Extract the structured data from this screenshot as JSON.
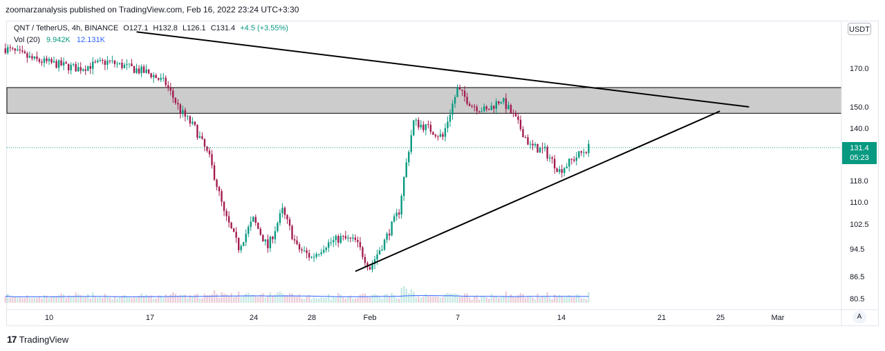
{
  "publisher_line": "zoomarzanalysis published on TradingView.com, Feb 16, 2022 23:24 UTC+3:30",
  "legend": {
    "symbol": "QNT / TetherUS, 4h, BINANCE",
    "open": "O127.1",
    "high": "H132.8",
    "low": "L126.1",
    "close": "C131.4",
    "change": "+4.5 (+3.55%)",
    "volume_label": "Vol (20)",
    "volume_value": "9.942K",
    "volume_ma": "12.131K"
  },
  "currency_button": "USDT",
  "auto_button": "A",
  "last_price": {
    "price": "131.4",
    "countdown": "05:23"
  },
  "branding": "TradingView",
  "colors": {
    "up": "#089981",
    "down": "#a31b4f",
    "volume_ma": "#2962ff",
    "zone": "#cccccc",
    "trendline": "#000000"
  },
  "chart_data": {
    "type": "candlestick",
    "timeframe": "4h",
    "x_ticks": [
      "10",
      "17",
      "24",
      "28",
      "Feb",
      "7",
      "14",
      "21",
      "25",
      "Mar"
    ],
    "y_ticks": [
      "170.0",
      "150.0",
      "140.0",
      "118.0",
      "110.0",
      "102.5",
      "94.5",
      "86.5",
      "80.5"
    ],
    "y_axis_tick_values": [
      170.0,
      150.0,
      140.0,
      118.0,
      110.0,
      102.5,
      94.5,
      86.5,
      80.5
    ],
    "price_path": [
      {
        "date": "2022-01-07",
        "close": 182
      },
      {
        "date": "2022-01-09",
        "close": 175
      },
      {
        "date": "2022-01-12",
        "close": 170
      },
      {
        "date": "2022-01-14",
        "close": 174
      },
      {
        "date": "2022-01-17",
        "close": 167
      },
      {
        "date": "2022-01-18",
        "close": 162
      },
      {
        "date": "2022-01-19",
        "close": 148
      },
      {
        "date": "2022-01-20",
        "close": 140
      },
      {
        "date": "2022-01-21",
        "close": 127
      },
      {
        "date": "2022-01-22",
        "close": 106
      },
      {
        "date": "2022-01-23",
        "close": 95
      },
      {
        "date": "2022-01-24",
        "close": 104
      },
      {
        "date": "2022-01-25",
        "close": 95
      },
      {
        "date": "2022-01-26",
        "close": 107
      },
      {
        "date": "2022-01-27",
        "close": 95
      },
      {
        "date": "2022-01-28",
        "close": 92
      },
      {
        "date": "2022-01-29",
        "close": 96
      },
      {
        "date": "2022-01-30",
        "close": 98
      },
      {
        "date": "2022-01-31",
        "close": 97
      },
      {
        "date": "2022-02-01",
        "close": 89
      },
      {
        "date": "2022-02-02",
        "close": 97
      },
      {
        "date": "2022-02-03",
        "close": 107
      },
      {
        "date": "2022-02-04",
        "close": 143
      },
      {
        "date": "2022-02-05",
        "close": 140
      },
      {
        "date": "2022-02-06",
        "close": 136
      },
      {
        "date": "2022-02-07",
        "close": 159
      },
      {
        "date": "2022-02-08",
        "close": 151
      },
      {
        "date": "2022-02-09",
        "close": 148
      },
      {
        "date": "2022-02-10",
        "close": 154
      },
      {
        "date": "2022-02-11",
        "close": 144
      },
      {
        "date": "2022-02-12",
        "close": 132
      },
      {
        "date": "2022-02-13",
        "close": 130
      },
      {
        "date": "2022-02-14",
        "close": 122
      },
      {
        "date": "2022-02-15",
        "close": 127
      },
      {
        "date": "2022-02-16",
        "close": 131.4
      }
    ],
    "resistance_zone": {
      "low": 147,
      "high": 160
    },
    "descending_trendline": [
      {
        "date": "2022-01-16",
        "price": 192
      },
      {
        "date": "2022-02-27",
        "price": 150
      }
    ],
    "ascending_trendline": [
      {
        "date": "2022-01-31",
        "price": 88
      },
      {
        "date": "2022-02-25",
        "price": 148
      }
    ],
    "last_price_line": 131.4
  }
}
